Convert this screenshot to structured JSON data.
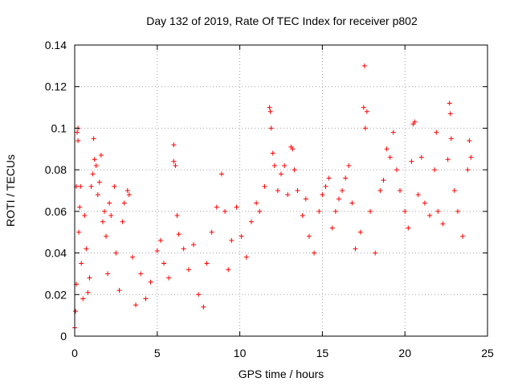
{
  "chart_data": {
    "type": "scatter",
    "title": "Day 132 of 2019, Rate Of TEC Index for receiver p802",
    "xlabel": "GPS time / hours",
    "ylabel": "ROTI / TECUs",
    "xlim": [
      0,
      25
    ],
    "ylim": [
      0,
      0.14
    ],
    "x_ticks": [
      0,
      5,
      10,
      15,
      20,
      25
    ],
    "x_tick_labels": [
      "0",
      "5",
      "10",
      "15",
      "20",
      "25"
    ],
    "y_ticks": [
      0,
      0.02,
      0.04,
      0.06,
      0.08,
      0.1,
      0.12,
      0.14
    ],
    "y_tick_labels": [
      "0",
      "0.02",
      "0.04",
      "0.06",
      "0.08",
      "0.1",
      "0.12",
      "0.14"
    ],
    "grid": true,
    "marker": "plus",
    "color": "#ff0000",
    "series": [
      {
        "points": [
          [
            0.0,
            0.004
          ],
          [
            0.05,
            0.012
          ],
          [
            0.1,
            0.025
          ],
          [
            0.1,
            0.072
          ],
          [
            0.15,
            0.098
          ],
          [
            0.2,
            0.1
          ],
          [
            0.2,
            0.094
          ],
          [
            0.25,
            0.05
          ],
          [
            0.3,
            0.062
          ],
          [
            0.35,
            0.072
          ],
          [
            0.4,
            0.035
          ],
          [
            0.5,
            0.018
          ],
          [
            0.6,
            0.058
          ],
          [
            0.7,
            0.042
          ],
          [
            0.8,
            0.021
          ],
          [
            0.9,
            0.028
          ],
          [
            1.0,
            0.072
          ],
          [
            1.1,
            0.078
          ],
          [
            1.15,
            0.095
          ],
          [
            1.2,
            0.085
          ],
          [
            1.3,
            0.082
          ],
          [
            1.4,
            0.068
          ],
          [
            1.5,
            0.074
          ],
          [
            1.6,
            0.087
          ],
          [
            1.7,
            0.055
          ],
          [
            1.8,
            0.06
          ],
          [
            1.9,
            0.048
          ],
          [
            2.0,
            0.03
          ],
          [
            2.1,
            0.064
          ],
          [
            2.2,
            0.058
          ],
          [
            2.4,
            0.072
          ],
          [
            2.5,
            0.04
          ],
          [
            2.7,
            0.022
          ],
          [
            2.9,
            0.055
          ],
          [
            3.0,
            0.064
          ],
          [
            3.2,
            0.07
          ],
          [
            3.3,
            0.068
          ],
          [
            3.5,
            0.038
          ],
          [
            3.7,
            0.015
          ],
          [
            4.0,
            0.03
          ],
          [
            4.3,
            0.018
          ],
          [
            4.6,
            0.026
          ],
          [
            5.0,
            0.041
          ],
          [
            5.2,
            0.046
          ],
          [
            5.4,
            0.035
          ],
          [
            5.7,
            0.028
          ],
          [
            6.0,
            0.092
          ],
          [
            6.0,
            0.084
          ],
          [
            6.1,
            0.082
          ],
          [
            6.2,
            0.058
          ],
          [
            6.3,
            0.049
          ],
          [
            6.6,
            0.042
          ],
          [
            6.9,
            0.032
          ],
          [
            7.2,
            0.044
          ],
          [
            7.5,
            0.02
          ],
          [
            7.8,
            0.014
          ],
          [
            8.0,
            0.035
          ],
          [
            8.3,
            0.05
          ],
          [
            8.6,
            0.062
          ],
          [
            8.9,
            0.078
          ],
          [
            9.1,
            0.06
          ],
          [
            9.3,
            0.032
          ],
          [
            9.5,
            0.046
          ],
          [
            9.8,
            0.062
          ],
          [
            10.1,
            0.048
          ],
          [
            10.4,
            0.038
          ],
          [
            10.7,
            0.055
          ],
          [
            11.0,
            0.064
          ],
          [
            11.2,
            0.06
          ],
          [
            11.5,
            0.072
          ],
          [
            11.8,
            0.11
          ],
          [
            11.85,
            0.108
          ],
          [
            11.9,
            0.1
          ],
          [
            12.0,
            0.088
          ],
          [
            12.1,
            0.082
          ],
          [
            12.3,
            0.07
          ],
          [
            12.5,
            0.078
          ],
          [
            12.7,
            0.082
          ],
          [
            12.9,
            0.068
          ],
          [
            13.1,
            0.091
          ],
          [
            13.2,
            0.09
          ],
          [
            13.3,
            0.08
          ],
          [
            13.5,
            0.07
          ],
          [
            13.8,
            0.058
          ],
          [
            14.0,
            0.066
          ],
          [
            14.2,
            0.048
          ],
          [
            14.5,
            0.04
          ],
          [
            14.8,
            0.06
          ],
          [
            15.0,
            0.068
          ],
          [
            15.2,
            0.072
          ],
          [
            15.4,
            0.076
          ],
          [
            15.6,
            0.052
          ],
          [
            15.8,
            0.06
          ],
          [
            16.0,
            0.066
          ],
          [
            16.2,
            0.07
          ],
          [
            16.4,
            0.076
          ],
          [
            16.6,
            0.082
          ],
          [
            16.8,
            0.064
          ],
          [
            17.0,
            0.042
          ],
          [
            17.3,
            0.05
          ],
          [
            17.5,
            0.11
          ],
          [
            17.55,
            0.13
          ],
          [
            17.6,
            0.1
          ],
          [
            17.7,
            0.108
          ],
          [
            17.9,
            0.06
          ],
          [
            18.2,
            0.04
          ],
          [
            18.5,
            0.07
          ],
          [
            18.7,
            0.075
          ],
          [
            18.9,
            0.09
          ],
          [
            19.1,
            0.086
          ],
          [
            19.3,
            0.098
          ],
          [
            19.5,
            0.08
          ],
          [
            19.7,
            0.07
          ],
          [
            20.0,
            0.06
          ],
          [
            20.2,
            0.052
          ],
          [
            20.4,
            0.084
          ],
          [
            20.5,
            0.102
          ],
          [
            20.6,
            0.103
          ],
          [
            20.8,
            0.068
          ],
          [
            21.0,
            0.086
          ],
          [
            21.2,
            0.064
          ],
          [
            21.5,
            0.058
          ],
          [
            21.8,
            0.08
          ],
          [
            21.9,
            0.098
          ],
          [
            22.0,
            0.06
          ],
          [
            22.3,
            0.054
          ],
          [
            22.6,
            0.085
          ],
          [
            22.7,
            0.112
          ],
          [
            22.75,
            0.107
          ],
          [
            22.8,
            0.095
          ],
          [
            23.0,
            0.07
          ],
          [
            23.2,
            0.06
          ],
          [
            23.5,
            0.048
          ],
          [
            23.8,
            0.08
          ],
          [
            23.9,
            0.094
          ],
          [
            24.0,
            0.086
          ]
        ]
      }
    ]
  }
}
